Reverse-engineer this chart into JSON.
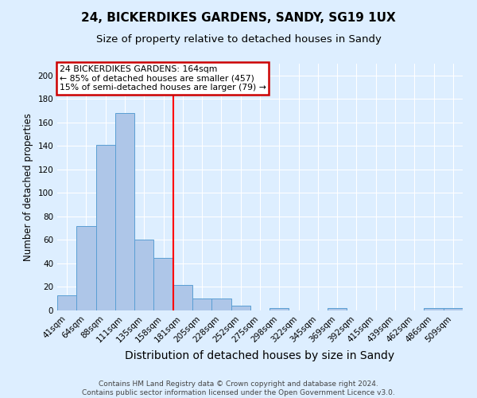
{
  "title": "24, BICKERDIKES GARDENS, SANDY, SG19 1UX",
  "subtitle": "Size of property relative to detached houses in Sandy",
  "xlabel": "Distribution of detached houses by size in Sandy",
  "ylabel": "Number of detached properties",
  "categories": [
    "41sqm",
    "64sqm",
    "88sqm",
    "111sqm",
    "135sqm",
    "158sqm",
    "181sqm",
    "205sqm",
    "228sqm",
    "252sqm",
    "275sqm",
    "298sqm",
    "322sqm",
    "345sqm",
    "369sqm",
    "392sqm",
    "415sqm",
    "439sqm",
    "462sqm",
    "486sqm",
    "509sqm"
  ],
  "values": [
    13,
    72,
    141,
    168,
    60,
    45,
    22,
    10,
    10,
    4,
    0,
    2,
    0,
    0,
    2,
    0,
    0,
    0,
    0,
    2,
    2
  ],
  "bar_color": "#aec6e8",
  "bar_edge_color": "#5a9fd4",
  "red_line_x": 5.5,
  "annotation_text": "24 BICKERDIKES GARDENS: 164sqm\n← 85% of detached houses are smaller (457)\n15% of semi-detached houses are larger (79) →",
  "annotation_box_color": "#ffffff",
  "annotation_box_edge_color": "#cc0000",
  "ylim": [
    0,
    210
  ],
  "yticks": [
    0,
    20,
    40,
    60,
    80,
    100,
    120,
    140,
    160,
    180,
    200
  ],
  "footer_line1": "Contains HM Land Registry data © Crown copyright and database right 2024.",
  "footer_line2": "Contains public sector information licensed under the Open Government Licence v3.0.",
  "background_color": "#ddeeff",
  "plot_bg_color": "#ddeeff",
  "grid_color": "#ffffff",
  "title_fontsize": 11,
  "subtitle_fontsize": 9.5,
  "xlabel_fontsize": 10,
  "ylabel_fontsize": 8.5,
  "tick_fontsize": 7.5,
  "footer_fontsize": 6.5,
  "annotation_fontsize": 7.8
}
